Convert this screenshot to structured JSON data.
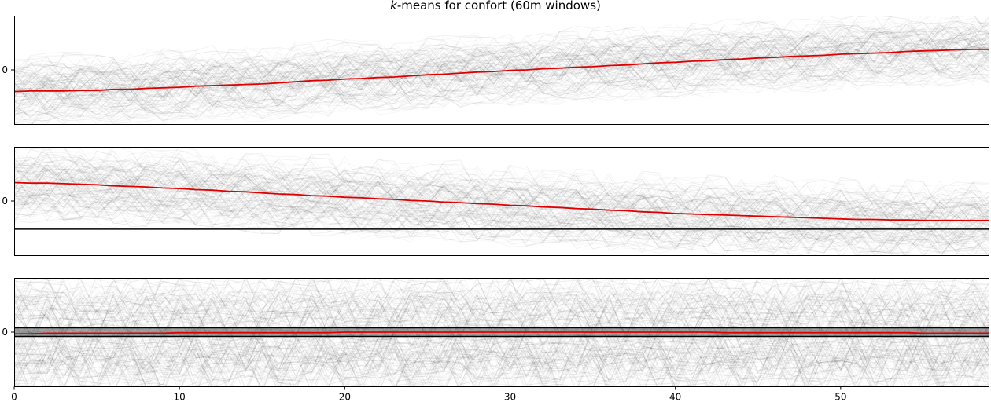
{
  "chart_data": {
    "type": "line",
    "title_prefix": "k",
    "title_rest": "-means for confort (60m windows)",
    "x": {
      "lim": [
        0,
        59
      ],
      "ticks": [
        0,
        10,
        20,
        30,
        40,
        50
      ],
      "tick_labels": [
        "0",
        "10",
        "20",
        "30",
        "40",
        "50"
      ]
    },
    "grid": false,
    "panels": [
      {
        "name": "cluster-1",
        "ylim": [
          -1,
          1
        ],
        "yticks": [
          0
        ],
        "ytick_labels": [
          "0"
        ],
        "centroid_color": "#e00000",
        "centroid": [
          -0.4,
          -0.39,
          -0.39,
          -0.39,
          -0.38,
          -0.38,
          -0.36,
          -0.36,
          -0.34,
          -0.33,
          -0.32,
          -0.3,
          -0.29,
          -0.28,
          -0.27,
          -0.26,
          -0.24,
          -0.22,
          -0.2,
          -0.19,
          -0.17,
          -0.16,
          -0.14,
          -0.13,
          -0.11,
          -0.09,
          -0.08,
          -0.06,
          -0.04,
          -0.03,
          -0.01,
          0.0,
          0.02,
          0.03,
          0.05,
          0.06,
          0.08,
          0.09,
          0.11,
          0.13,
          0.14,
          0.16,
          0.17,
          0.19,
          0.2,
          0.22,
          0.23,
          0.25,
          0.26,
          0.27,
          0.29,
          0.3,
          0.31,
          0.32,
          0.34,
          0.35,
          0.36,
          0.37,
          0.38,
          0.38
        ]
      },
      {
        "name": "cluster-2",
        "ylim": [
          -1,
          1
        ],
        "yticks": [
          0
        ],
        "ytick_labels": [
          "0"
        ],
        "centroid_color": "#e00000",
        "reference_line": -0.52,
        "centroid": [
          0.34,
          0.33,
          0.33,
          0.32,
          0.31,
          0.3,
          0.28,
          0.27,
          0.26,
          0.24,
          0.23,
          0.21,
          0.2,
          0.18,
          0.17,
          0.15,
          0.13,
          0.12,
          0.1,
          0.09,
          0.07,
          0.06,
          0.04,
          0.03,
          0.01,
          0.0,
          -0.02,
          -0.03,
          -0.05,
          -0.06,
          -0.08,
          -0.09,
          -0.11,
          -0.12,
          -0.14,
          -0.15,
          -0.17,
          -0.18,
          -0.2,
          -0.21,
          -0.23,
          -0.24,
          -0.25,
          -0.26,
          -0.27,
          -0.28,
          -0.29,
          -0.3,
          -0.31,
          -0.32,
          -0.33,
          -0.34,
          -0.34,
          -0.35,
          -0.35,
          -0.36,
          -0.36,
          -0.36,
          -0.36,
          -0.36
        ]
      },
      {
        "name": "cluster-3",
        "ylim": [
          -1,
          1
        ],
        "yticks": [
          0
        ],
        "ytick_labels": [
          "0"
        ],
        "centroid_color": "#e00000",
        "reference_lines": [
          0.08,
          -0.08
        ],
        "centroid": [
          -0.03,
          -0.03,
          -0.02,
          -0.02,
          -0.02,
          -0.02,
          -0.02,
          -0.02,
          -0.02,
          -0.02,
          -0.01,
          -0.01,
          -0.01,
          -0.01,
          -0.01,
          -0.01,
          -0.01,
          -0.01,
          -0.01,
          -0.01,
          0.0,
          0.0,
          0.0,
          0.0,
          0.0,
          0.0,
          0.0,
          0.0,
          0.0,
          0.0,
          0.0,
          0.0,
          0.0,
          0.0,
          0.0,
          0.0,
          0.0,
          0.0,
          0.0,
          0.0,
          0.0,
          0.0,
          0.0,
          -0.01,
          -0.01,
          -0.01,
          -0.01,
          -0.01,
          -0.01,
          -0.01,
          -0.01,
          -0.01,
          -0.01,
          -0.01,
          -0.01,
          -0.02,
          -0.02,
          -0.02,
          -0.02,
          -0.02
        ]
      }
    ]
  }
}
